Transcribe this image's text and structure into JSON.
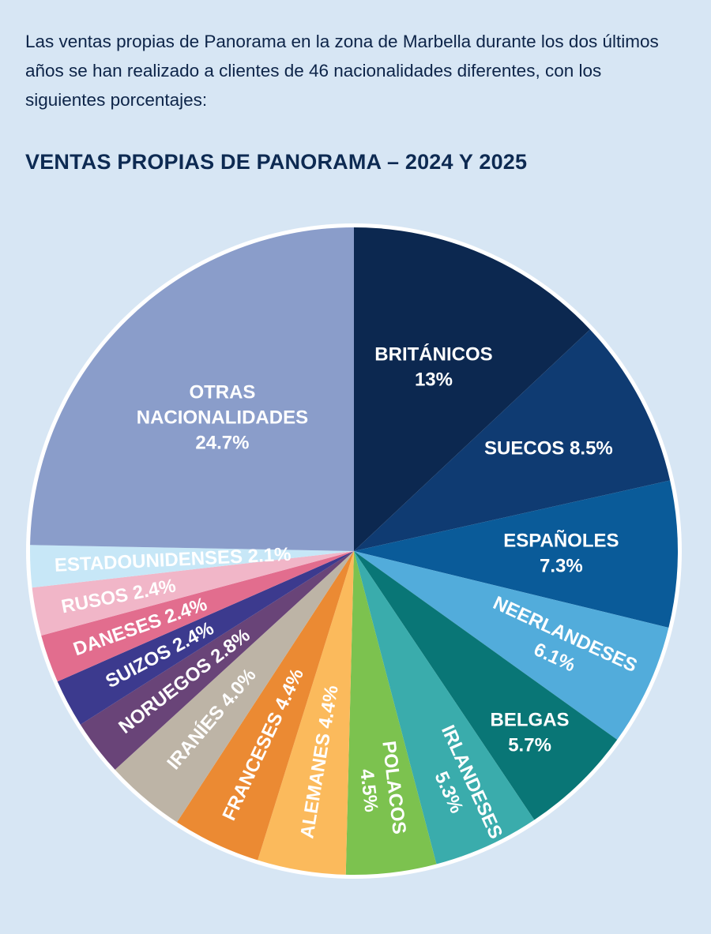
{
  "intro": "Las ventas propias de Panorama en la zona de Marbella durante los dos últimos años se han realizado a clientes de 46 nacionalidades diferentes, con los siguientes porcentajes:",
  "chart_data": {
    "type": "pie",
    "title": "VENTAS PROPIAS DE PANORAMA – 2024 Y 2025",
    "start": "top",
    "direction": "clockwise",
    "slices": [
      {
        "label": "BRITÁNICOS",
        "value": 13,
        "text": "13%",
        "color": "#0c2850"
      },
      {
        "label": "SUECOS",
        "value": 8.5,
        "text": "8.5%",
        "color": "#0f3b72"
      },
      {
        "label": "ESPAÑOLES",
        "value": 7.3,
        "text": "7.3%",
        "color": "#0a5b99"
      },
      {
        "label": "NEERLANDESES",
        "value": 6.1,
        "text": "6.1%",
        "color": "#52acdb"
      },
      {
        "label": "BELGAS",
        "value": 5.7,
        "text": "5.7%",
        "color": "#097676"
      },
      {
        "label": "IRLANDESES",
        "value": 5.3,
        "text": "5.3%",
        "color": "#3aacac"
      },
      {
        "label": "POLACOS",
        "value": 4.5,
        "text": "4.5%",
        "color": "#7cc24f"
      },
      {
        "label": "ALEMANES",
        "value": 4.4,
        "text": "4.4%",
        "color": "#fbba5c"
      },
      {
        "label": "FRANCESES",
        "value": 4.4,
        "text": "4.4%",
        "color": "#eb8a33"
      },
      {
        "label": "IRANÍES",
        "value": 4.0,
        "text": "4.0%",
        "color": "#bdb4a6"
      },
      {
        "label": "NORUEGOS",
        "value": 2.8,
        "text": "2.8%",
        "color": "#694478"
      },
      {
        "label": "SUIZOS",
        "value": 2.4,
        "text": "2.4%",
        "color": "#3c3a8e"
      },
      {
        "label": "DANESES",
        "value": 2.4,
        "text": "2.4%",
        "color": "#e26d8e"
      },
      {
        "label": "RUSOS",
        "value": 2.4,
        "text": "2.4%",
        "color": "#f1b6c8"
      },
      {
        "label": "ESTADOUNIDENSES",
        "value": 2.1,
        "text": "2.1%",
        "color": "#c7e7f7"
      },
      {
        "label": "OTRAS NACIONALIDADES",
        "value": 24.7,
        "text": "24.7%",
        "color": "#8a9dca"
      }
    ]
  }
}
